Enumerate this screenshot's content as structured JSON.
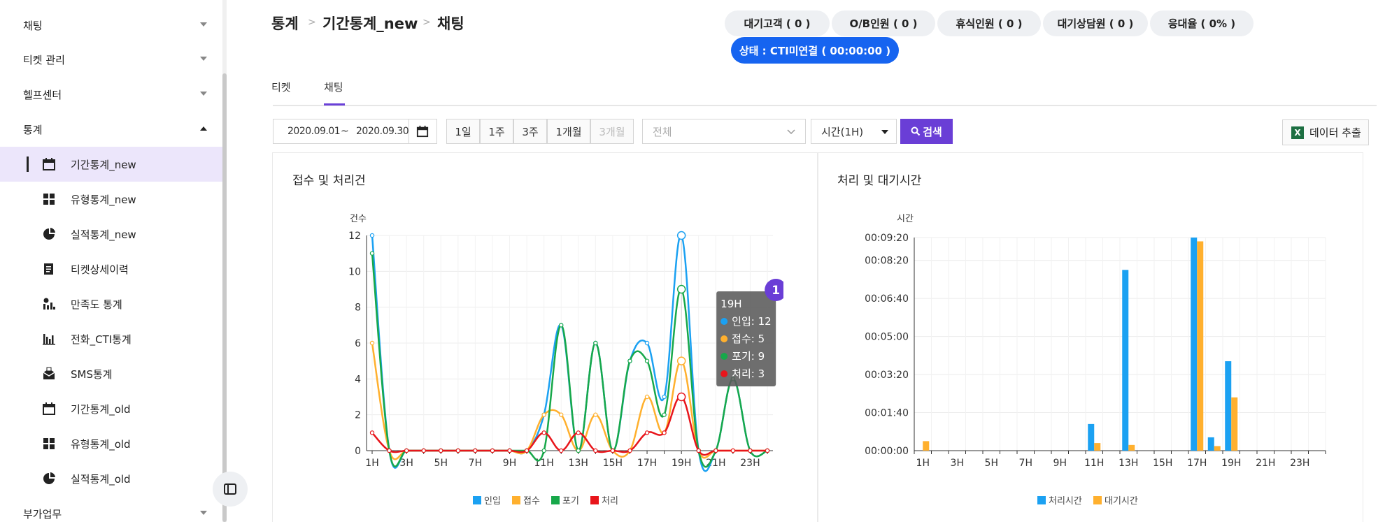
{
  "sidebar": {
    "menus": [
      {
        "label": "채팅",
        "expanded": false
      },
      {
        "label": "티켓 관리",
        "expanded": false
      },
      {
        "label": "헬프센터",
        "expanded": false
      },
      {
        "label": "통계",
        "expanded": true
      }
    ],
    "stats_items": [
      {
        "label": "기간통계_new",
        "icon": "calendar-icon",
        "active": true
      },
      {
        "label": "유형통계_new",
        "icon": "grid-icon",
        "active": false
      },
      {
        "label": "실적통계_new",
        "icon": "pie-icon",
        "active": false
      },
      {
        "label": "티켓상세이력",
        "icon": "document-icon",
        "active": false
      },
      {
        "label": "만족도 통계",
        "icon": "satisfaction-icon",
        "active": false
      },
      {
        "label": "전화_CTI통계",
        "icon": "bar-chart-icon",
        "active": false
      },
      {
        "label": "SMS통계",
        "icon": "sms-icon",
        "active": false
      },
      {
        "label": "기간통계_old",
        "icon": "calendar-icon",
        "active": false
      },
      {
        "label": "유형통계_old",
        "icon": "grid-icon",
        "active": false
      },
      {
        "label": "실적통계_old",
        "icon": "pie-icon",
        "active": false
      }
    ],
    "bottom_menu": {
      "label": "부가업무",
      "expanded": false
    }
  },
  "breadcrumb": [
    "통계",
    "기간통계_new",
    "채팅"
  ],
  "status": {
    "buttons": [
      "대기고객 ( 0 )",
      "O/B인원 ( 0 )",
      "휴식인원 ( 0 )",
      "대기상담원 ( 0 )",
      "응대율 ( 0% )"
    ],
    "cti": "상태 : CTI미연결 ( 00:00:00 )"
  },
  "tabs": [
    {
      "label": "티켓",
      "active": false
    },
    {
      "label": "채팅",
      "active": true
    }
  ],
  "filters": {
    "date_start": "2020.09.01",
    "date_sep": "~",
    "date_end": "2020.09.30",
    "periods": [
      {
        "label": "1일",
        "disabled": false
      },
      {
        "label": "1주",
        "disabled": false
      },
      {
        "label": "3주",
        "disabled": false
      },
      {
        "label": "1개월",
        "disabled": false
      },
      {
        "label": "3개월",
        "disabled": true
      }
    ],
    "category_placeholder": "전체",
    "interval": "시간(1H)",
    "search_label": "검색",
    "export_label": "데이터 추출"
  },
  "colors": {
    "inflow": "#1ba1f2",
    "accept": "#ffb02e",
    "abandon": "#17a84a",
    "process": "#e8151b",
    "accent": "#6a3ed6",
    "cti": "#1664f0"
  },
  "chart_data": [
    {
      "type": "line",
      "title": "접수 및 처리건",
      "ylabel": "건수",
      "ylim": [
        0,
        12
      ],
      "y_ticks": [
        0,
        2,
        4,
        6,
        8,
        10,
        12
      ],
      "x": [
        "1H",
        "2H",
        "3H",
        "4H",
        "5H",
        "6H",
        "7H",
        "8H",
        "9H",
        "10H",
        "11H",
        "12H",
        "13H",
        "14H",
        "15H",
        "16H",
        "17H",
        "18H",
        "19H",
        "20H",
        "21H",
        "22H",
        "23H",
        "24H"
      ],
      "x_tick_labels": [
        "1H",
        "3H",
        "5H",
        "7H",
        "9H",
        "11H",
        "13H",
        "15H",
        "17H",
        "19H",
        "21H",
        "23H"
      ],
      "series": [
        {
          "name": "인입",
          "color_key": "inflow",
          "values": [
            12,
            0,
            0,
            0,
            0,
            0,
            0,
            0,
            0,
            0,
            2,
            7,
            0,
            6,
            0,
            5,
            6,
            3,
            12,
            0,
            0,
            4,
            0,
            0
          ]
        },
        {
          "name": "접수",
          "color_key": "accept",
          "values": [
            6,
            0,
            0,
            0,
            0,
            0,
            0,
            0,
            0,
            0,
            2,
            2,
            0,
            2,
            0,
            0,
            3,
            1,
            5,
            0,
            0,
            0,
            0,
            0
          ]
        },
        {
          "name": "포기",
          "color_key": "abandon",
          "values": [
            11,
            0,
            0,
            0,
            0,
            0,
            0,
            0,
            0,
            0,
            0,
            7,
            0,
            6,
            0,
            5,
            5,
            2,
            9,
            0,
            0,
            4,
            0,
            0
          ]
        },
        {
          "name": "처리",
          "color_key": "process",
          "values": [
            1,
            0,
            0,
            0,
            0,
            0,
            0,
            0,
            0,
            0,
            1,
            0,
            1,
            0,
            0,
            0,
            1,
            1,
            3,
            0,
            0,
            0,
            0,
            0
          ]
        }
      ],
      "tooltip": {
        "badge": "1",
        "title": "19H",
        "rows": [
          "인입: 12",
          "접수: 5",
          "포기: 9",
          "처리: 3"
        ]
      }
    },
    {
      "type": "bar",
      "title": "처리 및 대기시간",
      "ylabel": "시간",
      "y_ticks": [
        "00:00:00",
        "00:01:40",
        "00:03:20",
        "00:05:00",
        "00:06:40",
        "00:08:20",
        "00:09:20"
      ],
      "y_tick_seconds": [
        0,
        100,
        200,
        300,
        400,
        500,
        560
      ],
      "ylim_seconds": [
        0,
        560
      ],
      "x": [
        "1H",
        "2H",
        "3H",
        "4H",
        "5H",
        "6H",
        "7H",
        "8H",
        "9H",
        "10H",
        "11H",
        "12H",
        "13H",
        "14H",
        "15H",
        "16H",
        "17H",
        "18H",
        "19H",
        "20H",
        "21H",
        "22H",
        "23H",
        "24H"
      ],
      "x_tick_labels": [
        "1H",
        "3H",
        "5H",
        "7H",
        "9H",
        "11H",
        "13H",
        "15H",
        "17H",
        "19H",
        "21H",
        "23H"
      ],
      "series": [
        {
          "name": "처리시간",
          "color_key": "inflow",
          "values_seconds": [
            0,
            0,
            0,
            0,
            0,
            0,
            0,
            0,
            0,
            0,
            70,
            0,
            475,
            0,
            0,
            0,
            560,
            35,
            235,
            0,
            0,
            0,
            0,
            0
          ]
        },
        {
          "name": "대기시간",
          "color_key": "accept",
          "values_seconds": [
            25,
            0,
            0,
            0,
            0,
            0,
            0,
            0,
            0,
            0,
            20,
            0,
            15,
            0,
            0,
            0,
            550,
            12,
            140,
            0,
            0,
            0,
            0,
            0
          ]
        }
      ]
    }
  ]
}
